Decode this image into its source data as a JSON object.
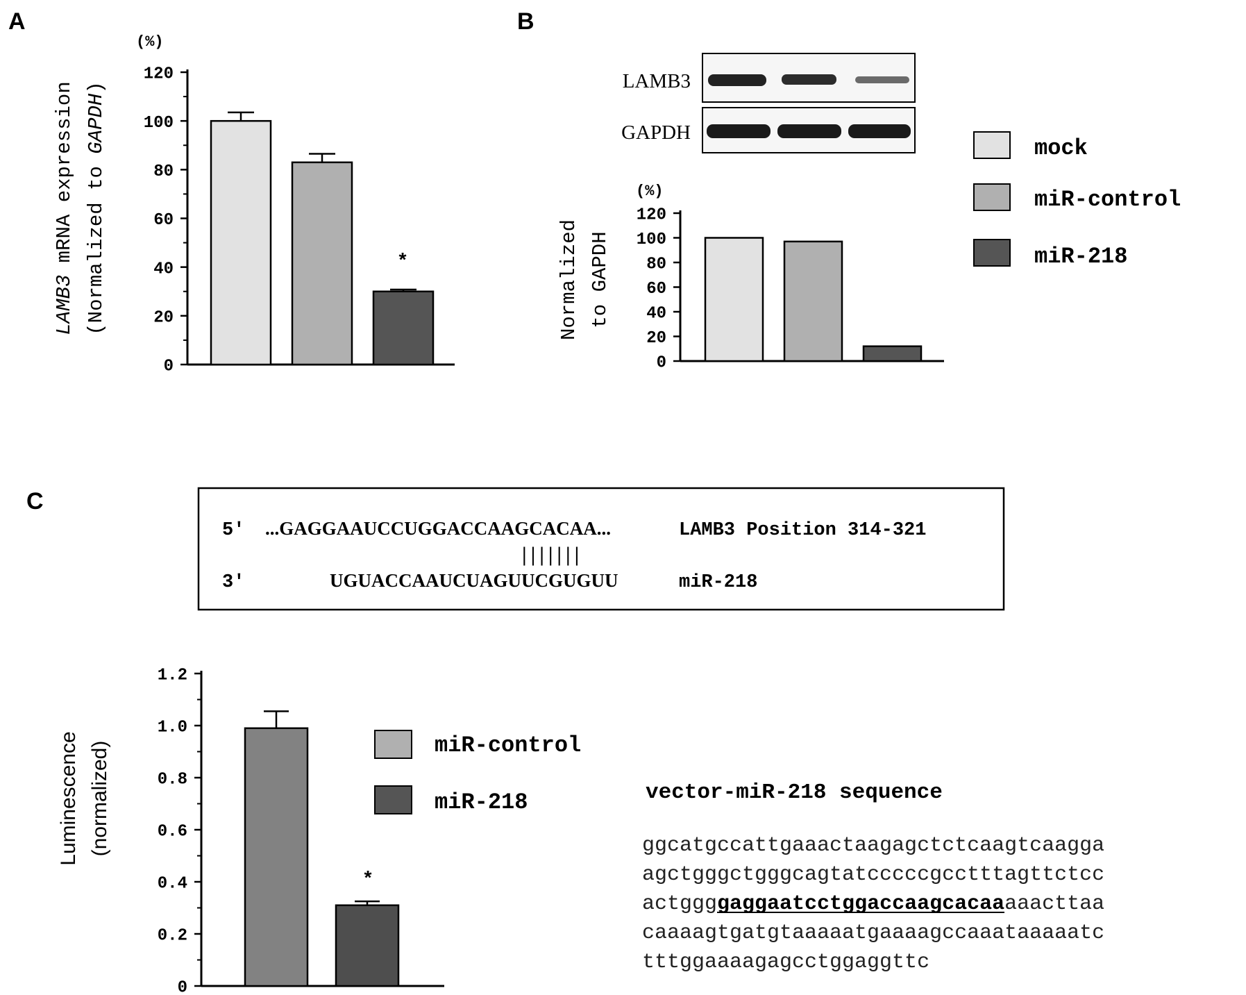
{
  "colors": {
    "mock": "#e2e2e2",
    "miR_control": "#b0b0b0",
    "miR_218": "#555555",
    "luc_control": "#828282",
    "luc_218": "#4e4e4e",
    "axis": "#000000",
    "band": "#1a1a1a"
  },
  "panels": {
    "A": {
      "letter": "A",
      "unit": "(%)",
      "ylabel_gene": "LAMB3",
      "ylabel_rest1": " mRNA expression",
      "ylabel_line2_prefix": "(Normalized to ",
      "ylabel_line2_gene": "GAPDH",
      "ylabel_line2_suffix": ")",
      "significance": "*"
    },
    "B": {
      "letter": "B",
      "unit": "(%)",
      "blot_labels": [
        "LAMB3",
        "GAPDH"
      ],
      "ylabel_line1": "Normalized",
      "ylabel_line2": "to GAPDH",
      "legend": [
        "mock",
        "miR-control",
        "miR-218"
      ]
    },
    "C": {
      "letter": "C",
      "seq_top_prime": "5'",
      "seq_top": "...GAGGAAUCCUGGACCAAGCACAA...",
      "seq_top_label": "LAMB3 Position 314-321",
      "pairing": "|||||||",
      "seq_bottom_prime": "3'",
      "seq_bottom": "UGUACCAAUCUAGUUCGUGUU",
      "seq_bottom_label": "miR-218",
      "ylabel_line1": "Luminescence",
      "ylabel_line2": "(normalized)",
      "legend": [
        "miR-control",
        "miR-218"
      ],
      "significance": "*",
      "vector_title": "vector-miR-218 sequence",
      "vector_lines": [
        {
          "pre": "ggcatgccattgaaactaagagctctcaagtcaagga",
          "hl": "",
          "post": ""
        },
        {
          "pre": "agctgggctgggcagtatcccccgcctttagttctcc",
          "hl": "",
          "post": ""
        },
        {
          "pre": "actggg",
          "hl": "gaggaatcctggaccaagcacaa",
          "post": "aaacttaa"
        },
        {
          "pre": "caaaagtgatgtaaaaatgaaaagccaaataaaaatc",
          "hl": "",
          "post": ""
        },
        {
          "pre": "tttggaaaagagcctggaggttc",
          "hl": "",
          "post": ""
        }
      ]
    }
  },
  "chart_data": [
    {
      "type": "bar",
      "panel": "A",
      "categories": [
        "mock",
        "miR-control",
        "miR-218"
      ],
      "values": [
        100,
        83,
        30
      ],
      "errors": [
        3.5,
        3.5,
        0.8
      ],
      "yticks": [
        "0",
        "20",
        "40",
        "60",
        "80",
        "100",
        "120"
      ],
      "ylim": [
        0,
        120
      ]
    },
    {
      "type": "bar",
      "panel": "B",
      "categories": [
        "mock",
        "miR-control",
        "miR-218"
      ],
      "values": [
        100,
        97,
        12
      ],
      "yticks": [
        "0",
        "20",
        "40",
        "60",
        "80",
        "100",
        "120"
      ],
      "ylim": [
        0,
        120
      ]
    },
    {
      "type": "bar",
      "panel": "C",
      "categories": [
        "miR-control",
        "miR-218"
      ],
      "values": [
        0.99,
        0.31
      ],
      "errors": [
        0.065,
        0.015
      ],
      "yticks": [
        "0",
        "0.2",
        "0.4",
        "0.6",
        "0.8",
        "1.0",
        "1.2"
      ],
      "ylim": [
        0,
        1.2
      ]
    }
  ]
}
